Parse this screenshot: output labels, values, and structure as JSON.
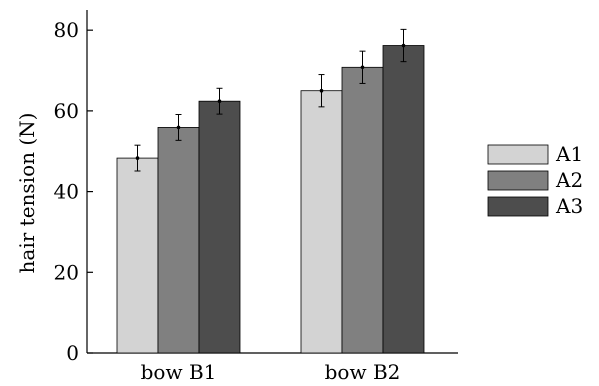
{
  "chart_data": {
    "type": "bar",
    "categories": [
      "bow B1",
      "bow B2"
    ],
    "series": [
      {
        "name": "A1",
        "color": "#d3d3d3",
        "values": [
          48.3,
          65.0
        ],
        "errors": [
          3.2,
          4.0
        ]
      },
      {
        "name": "A2",
        "color": "#808080",
        "values": [
          55.9,
          70.8
        ],
        "errors": [
          3.2,
          4.0
        ]
      },
      {
        "name": "A3",
        "color": "#4d4d4d",
        "values": [
          62.4,
          76.2
        ],
        "errors": [
          3.2,
          4.0
        ]
      }
    ],
    "title": "",
    "xlabel": "",
    "ylabel": "hair tension (N)",
    "ylim": [
      0,
      85
    ],
    "yticks": [
      0,
      20,
      40,
      60,
      80
    ],
    "grid": false,
    "legend": "right"
  }
}
